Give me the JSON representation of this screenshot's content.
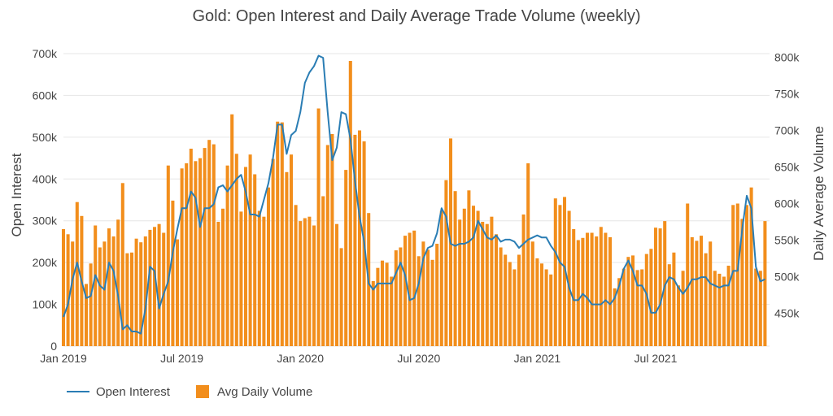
{
  "colors": {
    "bar": "#f28e1c",
    "line": "#2a7db4",
    "grid": "#e6e6e6",
    "text": "#444444"
  },
  "chart_data": {
    "type": "bar",
    "title": "Gold: Open Interest and Daily Average Trade Volume (weekly)",
    "ylabel_left": "Open Interest",
    "ylabel_right": "Daily Average Volume",
    "ylim_left": [
      0,
      700000
    ],
    "ylim_right": [
      405000,
      805000
    ],
    "x_range_weeks": [
      0,
      155
    ],
    "yticks_left": [
      "0",
      "100k",
      "200k",
      "300k",
      "400k",
      "500k",
      "600k",
      "700k"
    ],
    "yticks_right": [
      "450k",
      "500k",
      "550k",
      "600k",
      "650k",
      "700k",
      "750k",
      "800k"
    ],
    "xticks": [
      {
        "label": "Jan 2019",
        "week": 0
      },
      {
        "label": "Jul 2019",
        "week": 26
      },
      {
        "label": "Jan 2020",
        "week": 52
      },
      {
        "label": "Jul 2020",
        "week": 78
      },
      {
        "label": "Jan 2021",
        "week": 104
      },
      {
        "label": "Jul 2021",
        "week": 130
      }
    ],
    "grid": true,
    "legend_position": "bottom-left",
    "series": [
      {
        "name": "Open Interest",
        "type": "line",
        "axis": "left",
        "values": [
          70000,
          100000,
          160000,
          200000,
          155000,
          115000,
          120000,
          170000,
          145000,
          135000,
          200000,
          180000,
          120000,
          40000,
          50000,
          35000,
          35000,
          30000,
          90000,
          190000,
          180000,
          90000,
          125000,
          155000,
          225000,
          280000,
          330000,
          330000,
          370000,
          355000,
          285000,
          330000,
          330000,
          340000,
          380000,
          385000,
          370000,
          385000,
          400000,
          410000,
          370000,
          315000,
          315000,
          310000,
          350000,
          390000,
          450000,
          530000,
          530000,
          460000,
          505000,
          515000,
          560000,
          630000,
          655000,
          670000,
          695000,
          690000,
          560000,
          445000,
          475000,
          560000,
          555000,
          495000,
          395000,
          310000,
          250000,
          150000,
          135000,
          150000,
          150000,
          150000,
          150000,
          175000,
          200000,
          170000,
          110000,
          115000,
          150000,
          210000,
          235000,
          240000,
          270000,
          330000,
          310000,
          245000,
          240000,
          245000,
          245000,
          250000,
          260000,
          300000,
          280000,
          260000,
          255000,
          265000,
          250000,
          255000,
          255000,
          250000,
          235000,
          245000,
          255000,
          260000,
          265000,
          260000,
          260000,
          240000,
          225000,
          200000,
          190000,
          140000,
          110000,
          110000,
          125000,
          115000,
          100000,
          100000,
          100000,
          110000,
          100000,
          115000,
          145000,
          185000,
          205000,
          180000,
          145000,
          145000,
          125000,
          80000,
          80000,
          100000,
          145000,
          165000,
          160000,
          140000,
          125000,
          140000,
          160000,
          160000,
          165000,
          165000,
          150000,
          145000,
          140000,
          145000,
          145000,
          180000,
          180000,
          280000,
          360000,
          330000,
          190000,
          155000,
          160000
        ],
        "values_note": "weekly Open Interest"
      },
      {
        "name": "Avg Daily Volume",
        "type": "bar",
        "axis": "right",
        "values": [
          565000,
          558000,
          548000,
          602000,
          583000,
          490000,
          518000,
          570000,
          540000,
          548000,
          566000,
          555000,
          578000,
          628000,
          532000,
          533000,
          552000,
          547000,
          555000,
          564000,
          568000,
          572000,
          560000,
          652000,
          604000,
          551000,
          648000,
          655000,
          675000,
          658000,
          662000,
          676000,
          687000,
          681000,
          575000,
          593000,
          652000,
          722000,
          668000,
          589000,
          650000,
          667000,
          640000,
          590000,
          582000,
          622000,
          661000,
          712000,
          711000,
          643000,
          667000,
          598000,
          576000,
          580000,
          582000,
          570000,
          730000,
          610000,
          680000,
          695000,
          572000,
          539000,
          646000,
          795000,
          694000,
          700000,
          685000,
          587000,
          494000,
          512000,
          522000,
          519000,
          500000,
          536000,
          540000,
          556000,
          560000,
          563000,
          528000,
          548000,
          537000,
          523000,
          545000,
          590000,
          632000,
          689000,
          617000,
          578000,
          593000,
          618000,
          597000,
          590000,
          575000,
          572000,
          582000,
          558000,
          540000,
          530000,
          520000,
          510000,
          530000,
          585000,
          655000,
          548000,
          525000,
          518000,
          510000,
          503000,
          607000,
          598000,
          609000,
          590000,
          565000,
          550000,
          553000,
          560000,
          560000,
          555000,
          568000,
          560000,
          554000,
          484000,
          498000,
          511000,
          527000,
          529000,
          509000,
          510000,
          531000,
          538000,
          567000,
          566000,
          576000,
          517000,
          533000,
          488000,
          508000,
          600000,
          554000,
          549000,
          556000,
          532000,
          548000,
          508000,
          504000,
          500000,
          515000,
          598000,
          600000,
          579000,
          598000,
          622000,
          511000,
          508000,
          576000
        ]
      }
    ]
  },
  "legend": {
    "items": [
      {
        "name": "Open Interest",
        "icon": "line-swatch"
      },
      {
        "name": "Avg Daily Volume",
        "icon": "bar-swatch"
      }
    ]
  }
}
